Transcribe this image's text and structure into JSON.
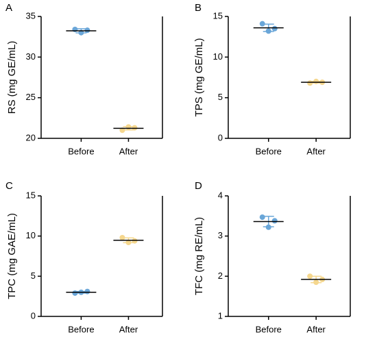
{
  "chart_data": [
    {
      "type": "dotplot",
      "label": "A",
      "ylabel": "RS (mg GE/mL)",
      "categories": [
        "Before",
        "After"
      ],
      "colors": [
        "#6aa6d8",
        "#f5d78e"
      ],
      "points": [
        [
          33.4,
          33.0,
          33.3
        ],
        [
          21.0,
          21.4,
          21.3
        ]
      ],
      "means": [
        33.23,
        21.23
      ],
      "sd": [
        0.25,
        0.2
      ],
      "ylim": [
        20,
        35
      ],
      "yticks": [
        20,
        25,
        30,
        35
      ]
    },
    {
      "type": "dotplot",
      "label": "B",
      "ylabel": "TPS (mg GE/mL)",
      "categories": [
        "Before",
        "After"
      ],
      "colors": [
        "#6aa6d8",
        "#f5d78e"
      ],
      "points": [
        [
          14.1,
          13.2,
          13.5
        ],
        [
          6.8,
          7.0,
          6.9
        ]
      ],
      "means": [
        13.6,
        6.9
      ],
      "sd": [
        0.45,
        0.1
      ],
      "ylim": [
        0,
        15
      ],
      "yticks": [
        0,
        5,
        10,
        15
      ]
    },
    {
      "type": "dotplot",
      "label": "C",
      "ylabel": "TPC (mg GAE/mL)",
      "categories": [
        "Before",
        "After"
      ],
      "colors": [
        "#6aa6d8",
        "#f5d78e"
      ],
      "points": [
        [
          2.9,
          3.0,
          3.1
        ],
        [
          9.8,
          9.2,
          9.4
        ]
      ],
      "means": [
        3.0,
        9.47
      ],
      "sd": [
        0.1,
        0.3
      ],
      "ylim": [
        0,
        15
      ],
      "yticks": [
        0,
        5,
        10,
        15
      ]
    },
    {
      "type": "dotplot",
      "label": "D",
      "ylabel": "TFC (mg RE/mL)",
      "categories": [
        "Before",
        "After"
      ],
      "colors": [
        "#6aa6d8",
        "#f5d78e"
      ],
      "points": [
        [
          3.47,
          3.22,
          3.38
        ],
        [
          2.0,
          1.85,
          1.92
        ]
      ],
      "means": [
        3.36,
        1.92
      ],
      "sd": [
        0.13,
        0.08
      ],
      "ylim": [
        1,
        4
      ],
      "yticks": [
        1,
        2,
        3,
        4
      ]
    }
  ]
}
